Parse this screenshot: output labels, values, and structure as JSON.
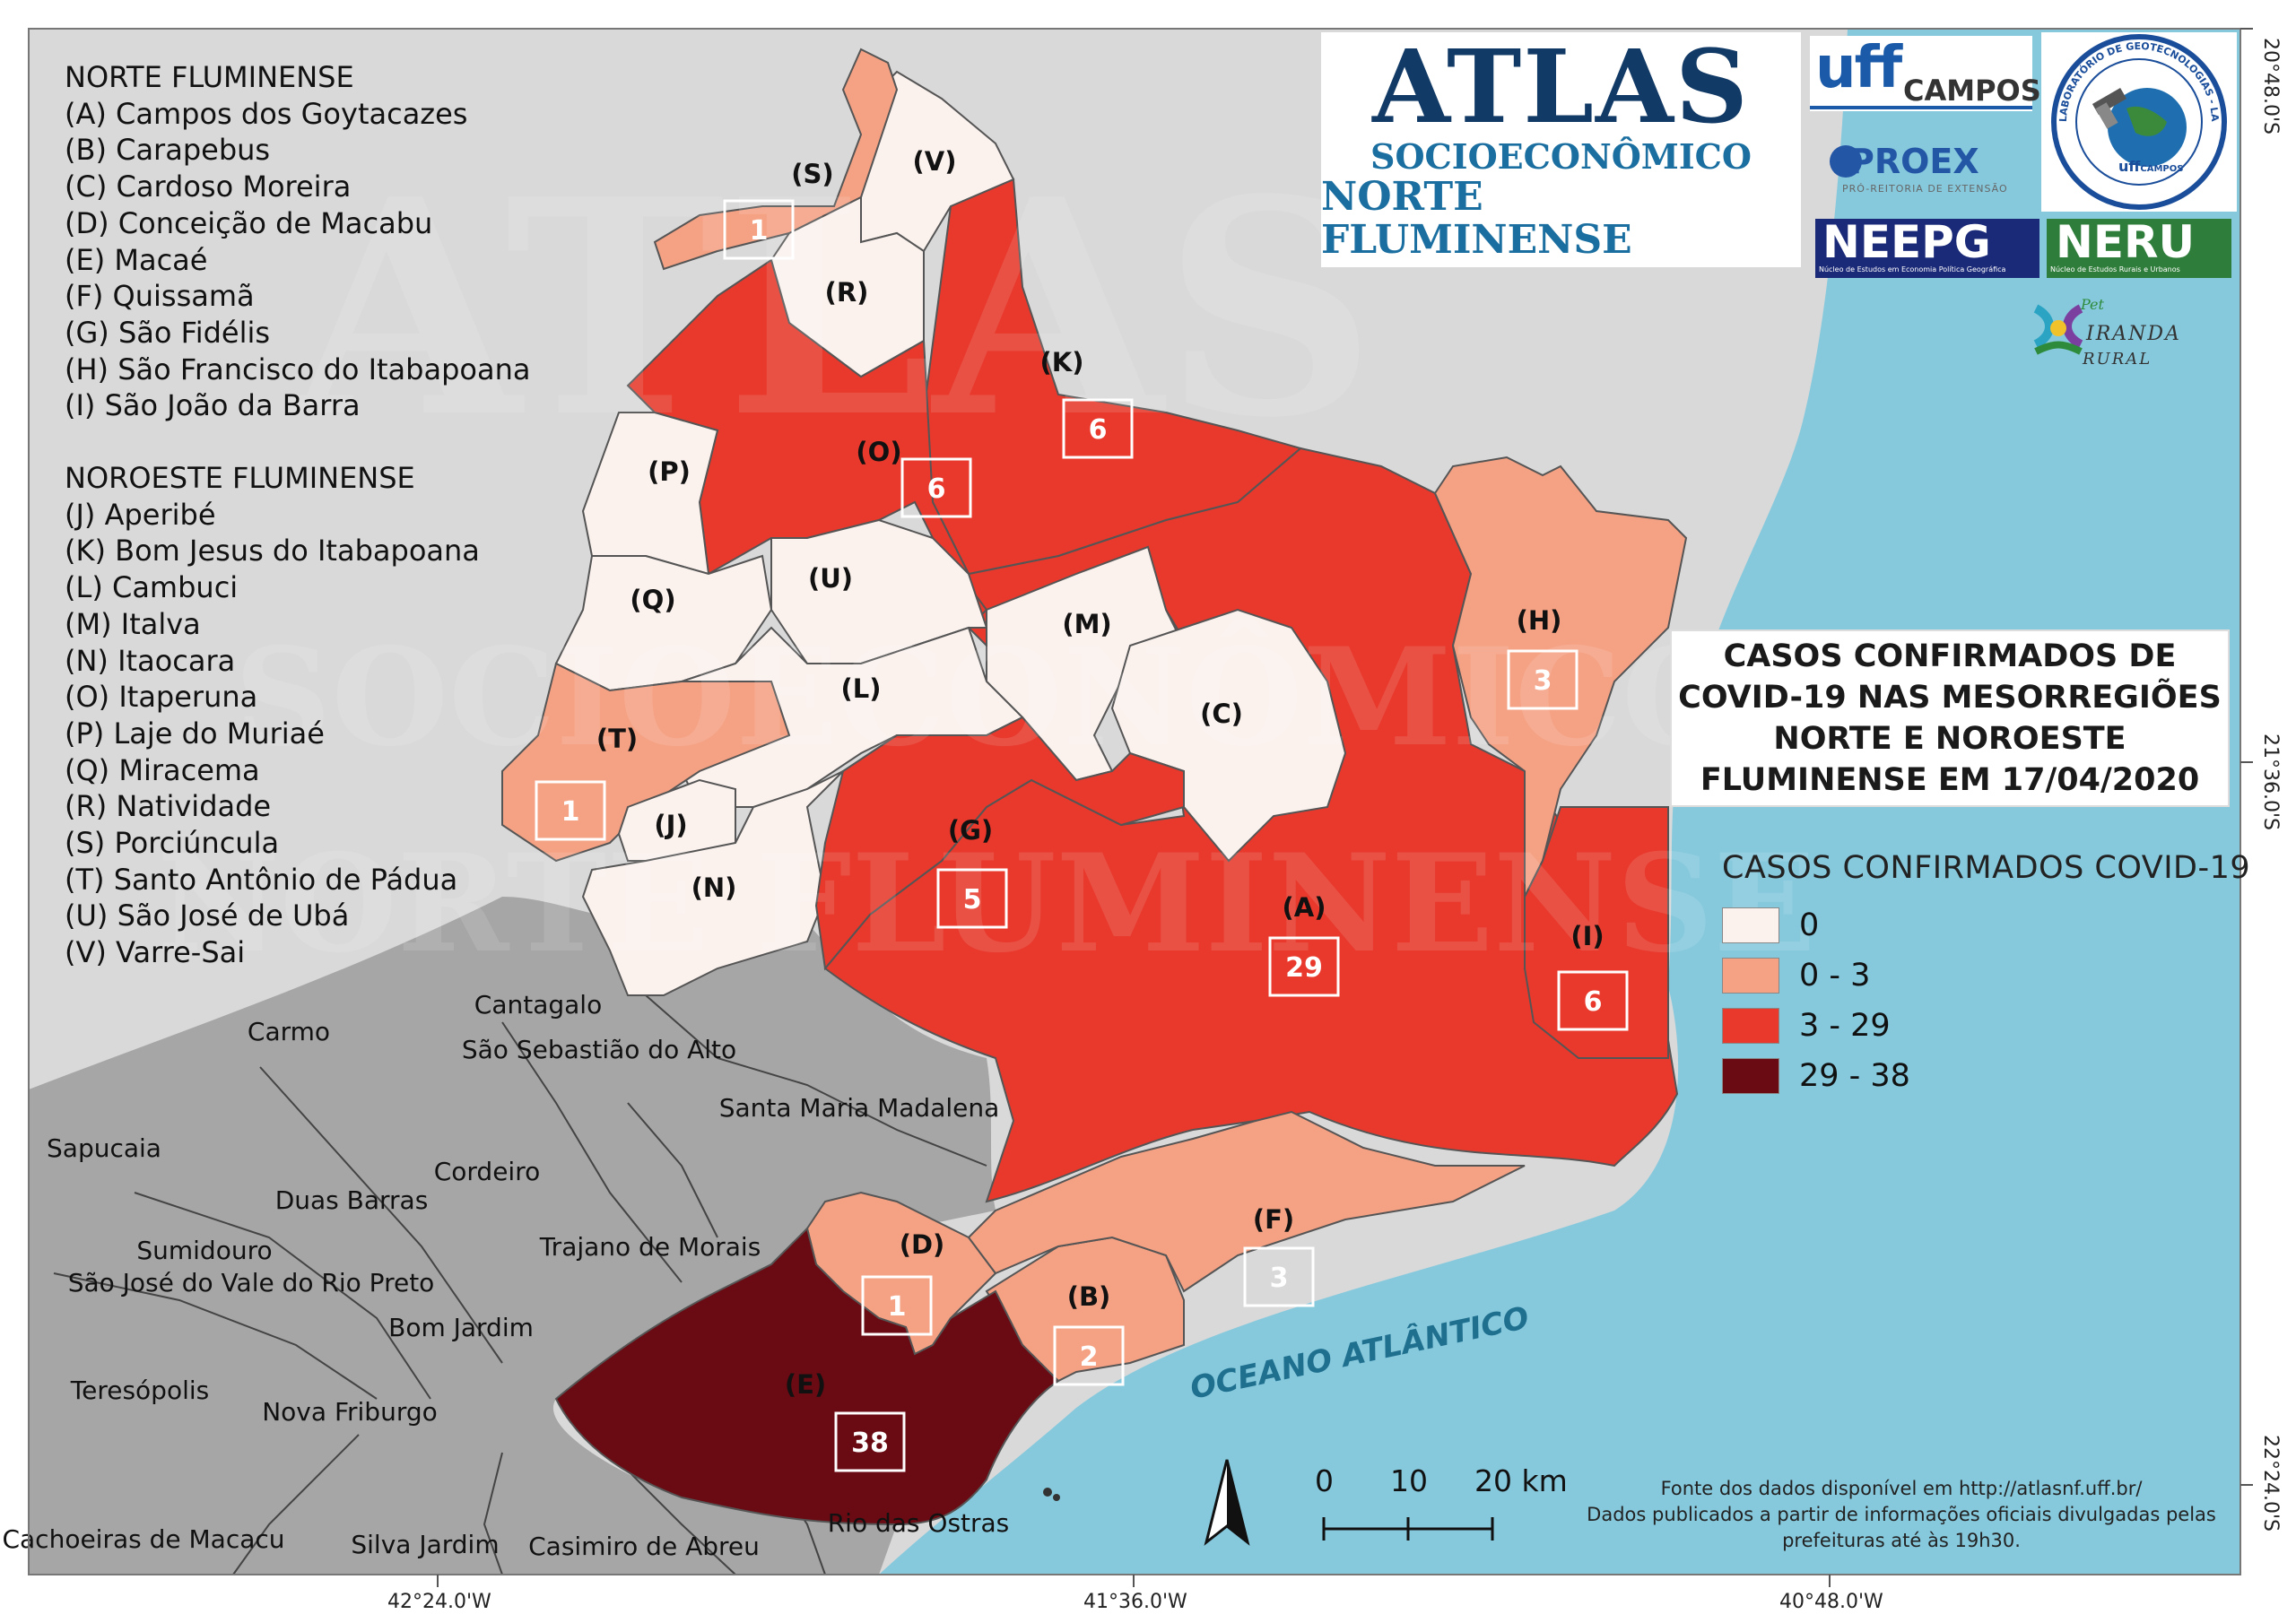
{
  "title": {
    "lines": [
      "CASOS CONFIRMADOS DE",
      "COVID-19 NAS MESORREGIÕES",
      "NORTE E NOROESTE",
      "FLUMINENSE EM 17/04/2020"
    ]
  },
  "atlas_logo": {
    "main": "ATLAS",
    "sub1": "SOCIOECONÔMICO",
    "sub2": "NORTE FLUMINENSE"
  },
  "logos": {
    "uff_campos": "CAMPOS",
    "uff_text": "uff",
    "proex": "PROEX",
    "proex_sub": "PRÓ-REITORIA DE EXTENSÃO",
    "lagoot_text": "LABORATÓRIO DE GEOTECNOLOGIAS - LAGEOT",
    "neepg": "NEEPG",
    "neepg_sub": "Núcleo de Estudos em Economia Política Geográfica",
    "neru": "NERU",
    "neru_sub": "Núcleo de Estudos Rurais e Urbanos",
    "pet": "Pet",
    "ciranda_a": "IRANDA",
    "ciranda_b": "RURAL"
  },
  "municipality_list": {
    "norte_header": "NORTE FLUMINENSE",
    "norte": [
      "(A) Campos dos Goytacazes",
      "(B) Carapebus",
      "(C) Cardoso Moreira",
      "(D) Conceição de Macabu",
      "(E) Macaé",
      "(F) Quissamã",
      "(G) São Fidélis",
      "(H) São Francisco do Itabapoana",
      "(I) São João da Barra"
    ],
    "noroeste_header": "NOROESTE FLUMINENSE",
    "noroeste": [
      "(J) Aperibé",
      "(K) Bom Jesus do Itabapoana",
      "(L) Cambuci",
      "(M) Italva",
      "(N) Itaocara",
      "(O) Itaperuna",
      "(P) Laje do Muriaé",
      "(Q) Miracema",
      "(R) Natividade",
      "(S) Porciúncula",
      "(T) Santo Antônio de Pádua",
      "(U) São José de Ubá",
      "(V) Varre-Sai"
    ]
  },
  "legend": {
    "title": "CASOS CONFIRMADOS COVID-19",
    "classes": [
      {
        "label": "0",
        "color": "#fbf2ee"
      },
      {
        "label": "0 - 3",
        "color": "#f5a183"
      },
      {
        "label": "3 - 29",
        "color": "#e8392c"
      },
      {
        "label": "29 - 38",
        "color": "#6a0a12"
      }
    ]
  },
  "map_colors": {
    "ocean": "#86c9dd",
    "background_land": "#d9d9d9",
    "neighbor_land": "#a6a6a6"
  },
  "municipalities": [
    {
      "code": "(A)",
      "cases": "29"
    },
    {
      "code": "(B)",
      "cases": "2"
    },
    {
      "code": "(C)",
      "cases": ""
    },
    {
      "code": "(D)",
      "cases": "1"
    },
    {
      "code": "(E)",
      "cases": "38"
    },
    {
      "code": "(F)",
      "cases": "3"
    },
    {
      "code": "(G)",
      "cases": "5"
    },
    {
      "code": "(H)",
      "cases": "3"
    },
    {
      "code": "(I)",
      "cases": "6"
    },
    {
      "code": "(J)",
      "cases": ""
    },
    {
      "code": "(K)",
      "cases": "6"
    },
    {
      "code": "(L)",
      "cases": ""
    },
    {
      "code": "(M)",
      "cases": ""
    },
    {
      "code": "(N)",
      "cases": ""
    },
    {
      "code": "(O)",
      "cases": "6"
    },
    {
      "code": "(P)",
      "cases": ""
    },
    {
      "code": "(Q)",
      "cases": ""
    },
    {
      "code": "(R)",
      "cases": ""
    },
    {
      "code": "(S)",
      "cases": "1"
    },
    {
      "code": "(T)",
      "cases": "1"
    },
    {
      "code": "(U)",
      "cases": ""
    },
    {
      "code": "(V)",
      "cases": ""
    }
  ],
  "neighbor_names": [
    "Cantagalo",
    "Carmo",
    "São Sebastião do Alto",
    "Santa Maria Madalena",
    "Sapucaia",
    "Cordeiro",
    "Duas Barras",
    "Trajano de Morais",
    "Sumidouro",
    "São José do Vale do Rio Preto",
    "Bom Jardim",
    "Teresópolis",
    "Nova Friburgo",
    "Cachoeiras de Macacu",
    "Silva Jardim",
    "Casimiro de Abreu",
    "Rio das Ostras"
  ],
  "ocean_label": "OCEANO ATLÂNTICO",
  "scale": {
    "l0": "0",
    "l1": "10",
    "l2": "20 km"
  },
  "coordinates": {
    "lon": [
      "42°24.0'W",
      "41°36.0'W",
      "40°48.0'W"
    ],
    "lat": [
      "20°48.0'S",
      "21°36.0'S",
      "22°24.0'S"
    ]
  },
  "source": {
    "line1": "Fonte dos dados disponível em http://atlasnf.uff.br/",
    "line2": "Dados publicados a partir de informações oficiais divulgadas pelas",
    "line3": "prefeituras até às 19h30."
  },
  "watermark": {
    "l1": "ATLAS",
    "l2": "SOCIOECONÔMICO",
    "l3": "NORTE FLUMINENSE"
  }
}
